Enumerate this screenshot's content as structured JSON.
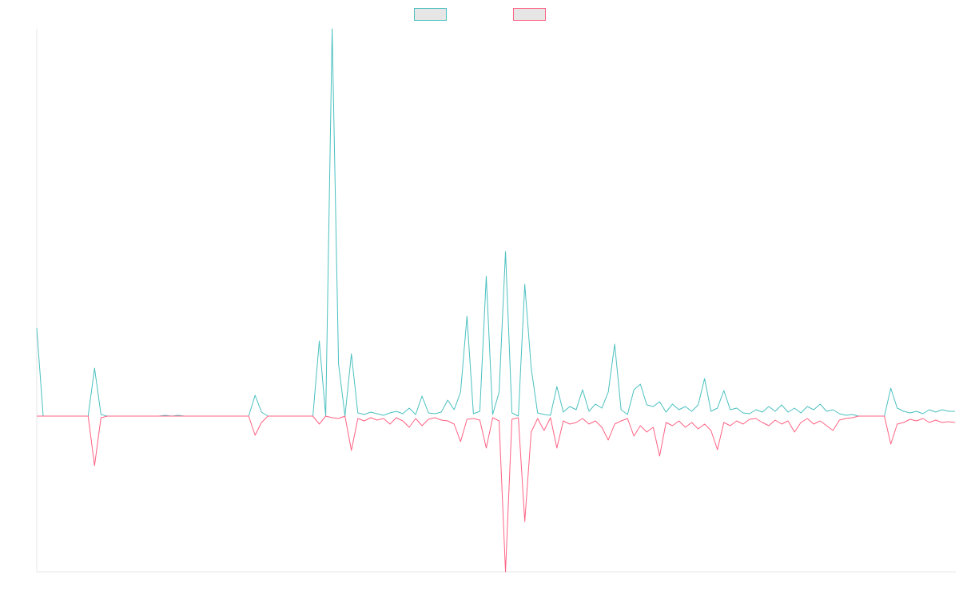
{
  "chart_data": {
    "type": "line",
    "legend": "top",
    "ylim": [
      -195,
      485
    ],
    "series": [
      {
        "color": "#4bc0c0",
        "values": [
          110,
          0,
          0,
          0,
          0,
          0,
          0,
          0,
          0,
          60,
          2,
          0,
          0,
          0,
          0,
          0,
          0,
          0,
          0,
          0,
          1,
          0,
          1,
          0,
          0,
          0,
          0,
          0,
          0,
          0,
          0,
          0,
          0,
          0,
          26,
          5,
          0,
          0,
          0,
          0,
          0,
          0,
          0,
          0,
          94,
          0,
          485,
          65,
          0,
          78,
          4,
          2,
          5,
          3,
          1,
          4,
          6,
          3,
          10,
          2,
          25,
          4,
          3,
          5,
          20,
          8,
          30,
          125,
          3,
          6,
          175,
          2,
          30,
          206,
          4,
          0,
          165,
          60,
          4,
          2,
          1,
          37,
          5,
          12,
          8,
          33,
          6,
          15,
          10,
          30,
          90,
          8,
          2,
          33,
          40,
          14,
          12,
          18,
          5,
          15,
          8,
          12,
          6,
          14,
          47,
          6,
          10,
          32,
          8,
          10,
          4,
          3,
          8,
          5,
          12,
          6,
          14,
          5,
          10,
          4,
          12,
          8,
          15,
          6,
          8,
          3,
          1,
          2,
          0,
          0,
          0,
          0,
          0,
          35,
          10,
          6,
          4,
          6,
          3,
          8,
          5,
          8,
          6,
          6
        ]
      },
      {
        "color": "#ff6384",
        "values": [
          0,
          0,
          0,
          0,
          0,
          0,
          0,
          0,
          0,
          -62,
          -2,
          0,
          0,
          0,
          0,
          0,
          0,
          0,
          0,
          0,
          0,
          0,
          0,
          0,
          0,
          0,
          0,
          0,
          0,
          0,
          0,
          0,
          0,
          0,
          -24,
          -8,
          0,
          0,
          0,
          0,
          0,
          0,
          0,
          0,
          -10,
          0,
          -2,
          -3,
          0,
          -43,
          -3,
          -6,
          -2,
          -5,
          -3,
          -10,
          -2,
          -6,
          -14,
          -3,
          -12,
          -4,
          -2,
          -5,
          -6,
          -10,
          -32,
          -4,
          -3,
          -5,
          -40,
          -2,
          -6,
          -195,
          -4,
          -2,
          -132,
          -20,
          -3,
          -18,
          -2,
          -40,
          -6,
          -10,
          -8,
          -3,
          -10,
          -6,
          -14,
          -30,
          -10,
          -6,
          -3,
          -25,
          -12,
          -20,
          -14,
          -50,
          -8,
          -12,
          -6,
          -14,
          -8,
          -16,
          -10,
          -18,
          -42,
          -8,
          -12,
          -6,
          -10,
          -4,
          -3,
          -8,
          -12,
          -5,
          -10,
          -6,
          -20,
          -8,
          -3,
          -10,
          -6,
          -12,
          -18,
          -5,
          -3,
          -2,
          0,
          0,
          0,
          0,
          0,
          -35,
          -10,
          -8,
          -4,
          -6,
          -3,
          -8,
          -5,
          -8,
          -7,
          -8
        ]
      }
    ]
  }
}
